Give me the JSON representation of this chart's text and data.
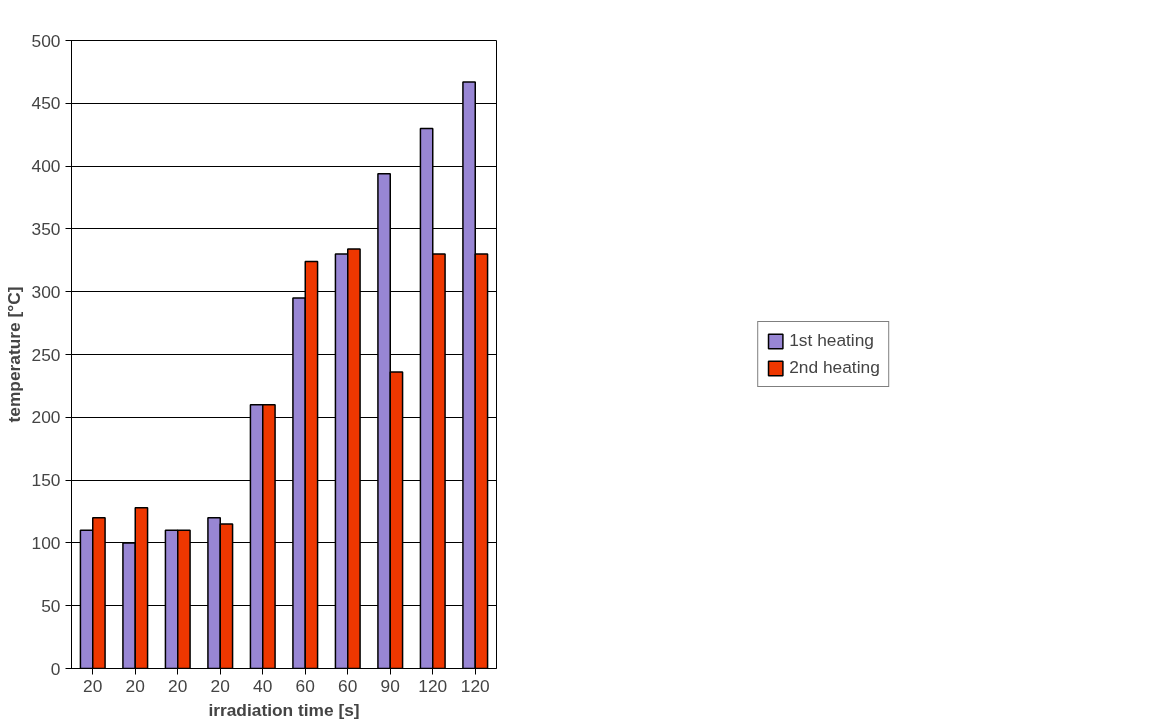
{
  "chart_data": {
    "type": "bar",
    "xlabel": "irradiation time [s]",
    "ylabel": "temperature [°C]",
    "categories": [
      "20",
      "20",
      "20",
      "20",
      "40",
      "60",
      "60",
      "90",
      "120",
      "120"
    ],
    "series": [
      {
        "name": "1st heating",
        "color": "#9886d4",
        "values": [
          110,
          100,
          110,
          120,
          210,
          295,
          330,
          394,
          430,
          467
        ]
      },
      {
        "name": "2nd heating",
        "color": "#ee3700",
        "values": [
          120,
          128,
          110,
          115,
          210,
          324,
          334,
          236,
          330,
          330
        ]
      }
    ],
    "ylim": [
      0,
      500
    ],
    "yticks": [
      0,
      50,
      100,
      150,
      200,
      250,
      300,
      350,
      400,
      450,
      500
    ],
    "grid": "y",
    "legend": "right"
  }
}
